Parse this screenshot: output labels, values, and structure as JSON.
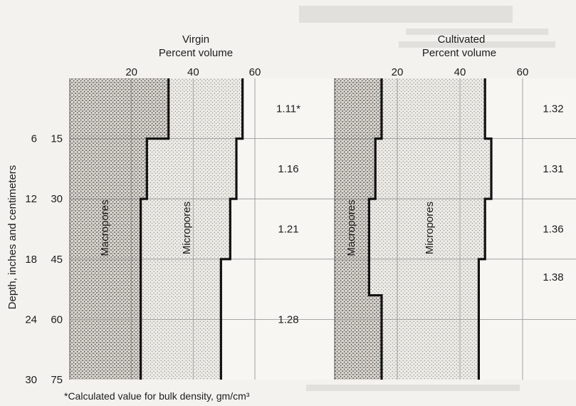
{
  "chart_data": {
    "type": "area",
    "ylabel": "Depth, inches and centimeters",
    "y_ticks": [
      {
        "in": 6,
        "cm": 15
      },
      {
        "in": 12,
        "cm": 30
      },
      {
        "in": 18,
        "cm": 45
      },
      {
        "in": 24,
        "cm": 60
      },
      {
        "in": 30,
        "cm": 75
      }
    ],
    "ylim_cm": [
      0,
      75
    ],
    "x_ticks": [
      20,
      40,
      60
    ],
    "footnote": "*Calculated value for bulk density, gm/cm³",
    "panels": [
      {
        "title": "Virgin",
        "subtitle": "Percent volume",
        "xlim": [
          0,
          63
        ],
        "layers": [
          {
            "from_cm": 0,
            "to_cm": 15,
            "macropore_boundary": 32,
            "total_pore": 56,
            "bulk_density": "1.11*"
          },
          {
            "from_cm": 15,
            "to_cm": 30,
            "macropore_boundary": 25,
            "total_pore": 54,
            "bulk_density": "1.16"
          },
          {
            "from_cm": 30,
            "to_cm": 45,
            "macropore_boundary": 23,
            "total_pore": 52,
            "bulk_density": "1.21"
          },
          {
            "from_cm": 45,
            "to_cm": 75,
            "macropore_boundary": 23,
            "total_pore": 49,
            "bulk_density": "1.28"
          }
        ],
        "region_labels": [
          "Macropores",
          "Micropores"
        ]
      },
      {
        "title": "Cultivated",
        "subtitle": "Percent volume",
        "xlim": [
          0,
          75
        ],
        "layers": [
          {
            "from_cm": 0,
            "to_cm": 15,
            "macropore_boundary": 15,
            "total_pore": 48,
            "bulk_density": "1.32"
          },
          {
            "from_cm": 15,
            "to_cm": 30,
            "macropore_boundary": 13,
            "total_pore": 50,
            "bulk_density": "1.31"
          },
          {
            "from_cm": 30,
            "to_cm": 45,
            "macropore_boundary": 11,
            "total_pore": 48,
            "bulk_density": "1.36"
          },
          {
            "from_cm": 45,
            "to_cm": 54,
            "macropore_boundary": 11,
            "total_pore": 46,
            "bulk_density": "1.38"
          },
          {
            "from_cm": 54,
            "to_cm": 75,
            "macropore_boundary": 15,
            "total_pore": 46,
            "bulk_density": ""
          }
        ],
        "region_labels": [
          "Macropores",
          "Micropores"
        ]
      }
    ]
  }
}
